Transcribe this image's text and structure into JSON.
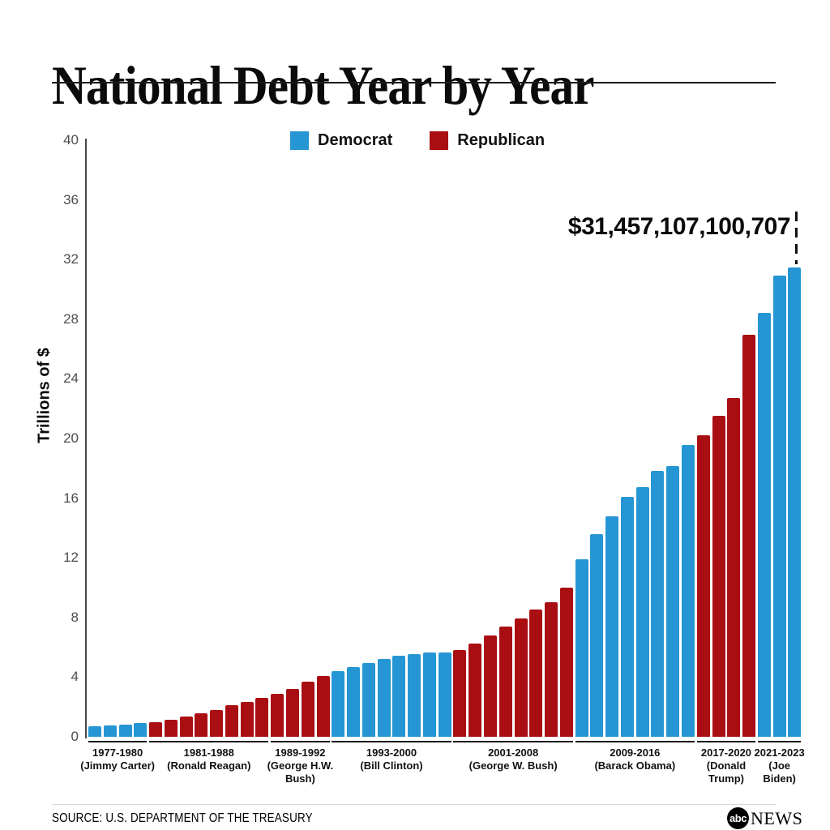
{
  "header": {
    "title": "National Debt Year by Year"
  },
  "legend": [
    {
      "label": "Democrat",
      "color": "#2596D3"
    },
    {
      "label": "Republican",
      "color": "#A90E13"
    }
  ],
  "annotation": {
    "value_label": "$31,457,107,100,707"
  },
  "y_axis": {
    "label": "Trillions of $"
  },
  "footer": {
    "source": "SOURCE: U.S. DEPARTMENT OF THE TREASURY",
    "logo_abc": "abc",
    "logo_news": "NEWS"
  },
  "chart_data": {
    "type": "bar",
    "title": "National Debt Year by Year",
    "xlabel": "",
    "ylabel": "Trillions of $",
    "ylim": [
      0,
      40
    ],
    "yticks": [
      0,
      4,
      8,
      12,
      16,
      20,
      24,
      28,
      32,
      36,
      40
    ],
    "grid": false,
    "legend_position": "top",
    "series_colors": {
      "Democrat": "#2596D3",
      "Republican": "#A90E13"
    },
    "annotation": {
      "text": "$31,457,107,100,707",
      "year": 2023,
      "value_trillions": 31.457107100707
    },
    "groups": [
      {
        "term": "1977-1980",
        "president": "Jimmy Carter",
        "party": "Democrat",
        "label_lines": [
          "1977-1980",
          "(Jimmy Carter)"
        ],
        "years": [
          1977,
          1978,
          1979,
          1980
        ],
        "values": [
          0.7,
          0.77,
          0.83,
          0.91
        ]
      },
      {
        "term": "1981-1988",
        "president": "Ronald Reagan",
        "party": "Republican",
        "label_lines": [
          "1981-1988",
          "(Ronald Reagan)"
        ],
        "years": [
          1981,
          1982,
          1983,
          1984,
          1985,
          1986,
          1987,
          1988
        ],
        "values": [
          1.0,
          1.14,
          1.38,
          1.57,
          1.82,
          2.13,
          2.35,
          2.6
        ]
      },
      {
        "term": "1989-1992",
        "president": "George H.W. Bush",
        "party": "Republican",
        "label_lines": [
          "1989-1992",
          "(George H.W.",
          "Bush)"
        ],
        "years": [
          1989,
          1990,
          1991,
          1992
        ],
        "values": [
          2.86,
          3.23,
          3.67,
          4.06
        ]
      },
      {
        "term": "1993-2000",
        "president": "Bill Clinton",
        "party": "Democrat",
        "label_lines": [
          "1993-2000",
          "(Bill Clinton)"
        ],
        "years": [
          1993,
          1994,
          1995,
          1996,
          1997,
          1998,
          1999,
          2000
        ],
        "values": [
          4.41,
          4.69,
          4.97,
          5.22,
          5.41,
          5.53,
          5.66,
          5.67
        ]
      },
      {
        "term": "2001-2008",
        "president": "George W. Bush",
        "party": "Republican",
        "label_lines": [
          "2001-2008",
          "(George W. Bush)"
        ],
        "years": [
          2001,
          2002,
          2003,
          2004,
          2005,
          2006,
          2007,
          2008
        ],
        "values": [
          5.81,
          6.23,
          6.78,
          7.38,
          7.93,
          8.51,
          9.01,
          10.02
        ]
      },
      {
        "term": "2009-2016",
        "president": "Barack Obama",
        "party": "Democrat",
        "label_lines": [
          "2009-2016",
          "(Barack Obama)"
        ],
        "years": [
          2009,
          2010,
          2011,
          2012,
          2013,
          2014,
          2015,
          2016
        ],
        "values": [
          11.91,
          13.56,
          14.79,
          16.07,
          16.74,
          17.82,
          18.15,
          19.57
        ]
      },
      {
        "term": "2017-2020",
        "president": "Donald Trump",
        "party": "Republican",
        "label_lines": [
          "2017-2020",
          "(Donald",
          "Trump)"
        ],
        "years": [
          2017,
          2018,
          2019,
          2020
        ],
        "values": [
          20.24,
          21.52,
          22.72,
          26.95
        ]
      },
      {
        "term": "2021-2023",
        "president": "Joe Biden",
        "party": "Democrat",
        "label_lines": [
          "2021-2023",
          "(Joe",
          "Biden)"
        ],
        "years": [
          2021,
          2022,
          2023
        ],
        "values": [
          28.43,
          30.93,
          31.46
        ]
      }
    ]
  }
}
